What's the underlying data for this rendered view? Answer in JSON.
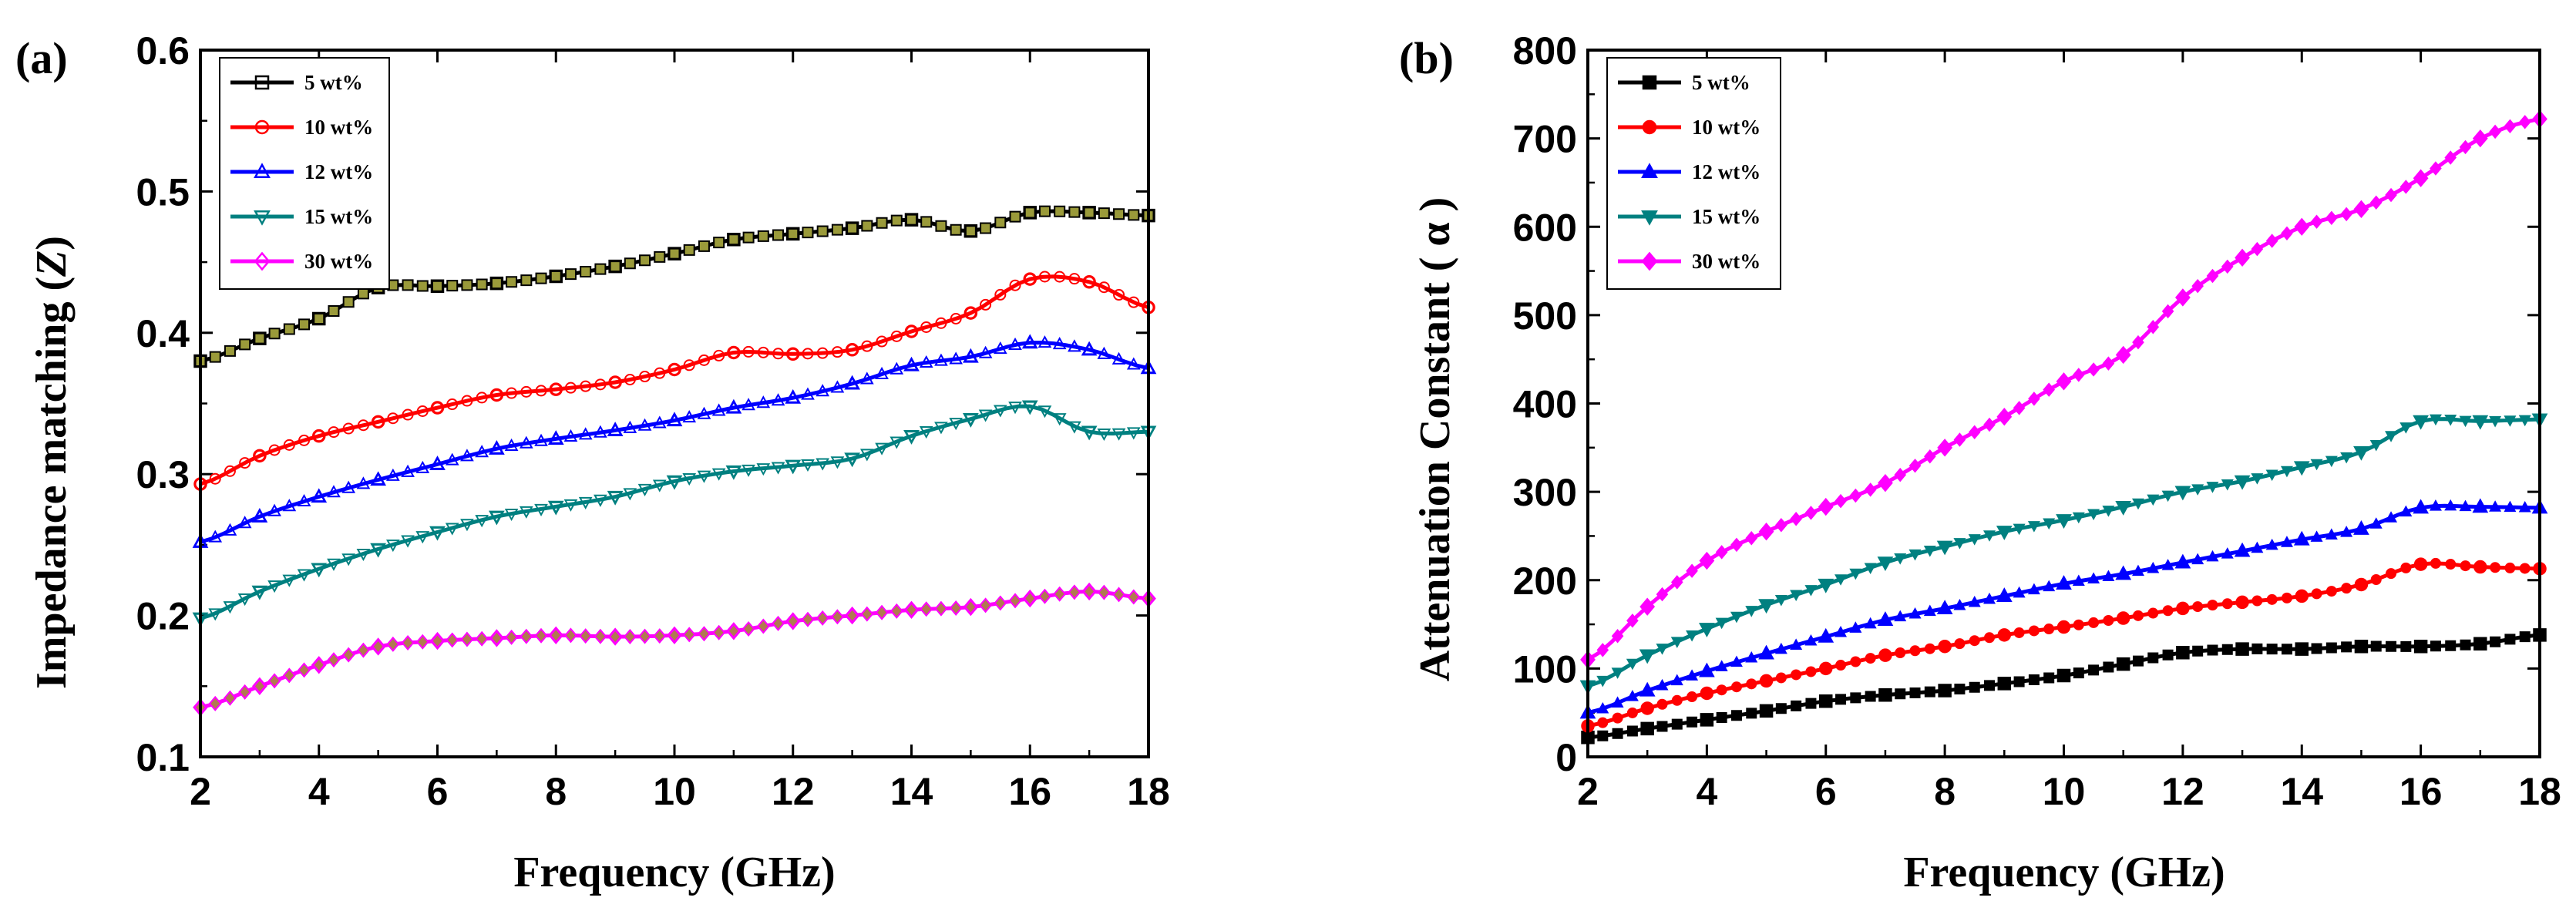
{
  "chart_data": [
    {
      "type": "line",
      "panel_label": "(a)",
      "title": "",
      "xlabel": "Frequency (GHz)",
      "ylabel_prefix": "Impedance matching (",
      "ylabel_symbol": "Z",
      "ylabel_suffix": ")",
      "xlim": [
        2,
        18
      ],
      "ylim": [
        0.1,
        0.6
      ],
      "xticks": [
        2,
        4,
        6,
        8,
        10,
        12,
        14,
        16,
        18
      ],
      "yticks": [
        0.1,
        0.2,
        0.3,
        0.4,
        0.5,
        0.6
      ],
      "legend_position": "top-left",
      "grid": false,
      "marker_style": "hollow",
      "x": [
        2,
        3,
        4,
        5,
        6,
        7,
        8,
        9,
        10,
        11,
        12,
        13,
        14,
        15,
        16,
        17,
        18
      ],
      "series": [
        {
          "name": "5 wt%",
          "color": "#000000",
          "marker": "square",
          "values": [
            0.38,
            0.396,
            0.41,
            0.432,
            0.433,
            0.435,
            0.44,
            0.447,
            0.456,
            0.466,
            0.47,
            0.474,
            0.48,
            0.472,
            0.485,
            0.485,
            0.483
          ]
        },
        {
          "name": "10 wt%",
          "color": "#ff0000",
          "marker": "circle",
          "values": [
            0.293,
            0.313,
            0.327,
            0.337,
            0.347,
            0.356,
            0.36,
            0.365,
            0.374,
            0.386,
            0.385,
            0.388,
            0.401,
            0.414,
            0.438,
            0.436,
            0.418
          ]
        },
        {
          "name": "12 wt%",
          "color": "#0000ff",
          "marker": "triangle-up",
          "values": [
            0.252,
            0.27,
            0.284,
            0.296,
            0.307,
            0.318,
            0.325,
            0.331,
            0.338,
            0.347,
            0.354,
            0.364,
            0.377,
            0.383,
            0.393,
            0.388,
            0.375
          ]
        },
        {
          "name": "15 wt%",
          "color": "#008080",
          "marker": "triangle-down",
          "values": [
            0.198,
            0.217,
            0.233,
            0.247,
            0.259,
            0.27,
            0.277,
            0.284,
            0.295,
            0.302,
            0.306,
            0.311,
            0.327,
            0.339,
            0.348,
            0.33,
            0.33
          ]
        },
        {
          "name": "30 wt%",
          "color": "#ff00ff",
          "marker": "diamond",
          "values": [
            0.135,
            0.15,
            0.165,
            0.178,
            0.182,
            0.184,
            0.186,
            0.185,
            0.186,
            0.189,
            0.196,
            0.2,
            0.204,
            0.206,
            0.212,
            0.217,
            0.212
          ]
        }
      ]
    },
    {
      "type": "line",
      "panel_label": "(b)",
      "title": "",
      "xlabel": "Frequency (GHz)",
      "ylabel": "Attenuation Constant ( α )",
      "xlim": [
        2,
        18
      ],
      "ylim": [
        0,
        800
      ],
      "xticks": [
        2,
        4,
        6,
        8,
        10,
        12,
        14,
        16,
        18
      ],
      "yticks": [
        0,
        100,
        200,
        300,
        400,
        500,
        600,
        700,
        800
      ],
      "legend_position": "top-left",
      "grid": false,
      "marker_style": "filled",
      "x": [
        2,
        3,
        4,
        5,
        6,
        7,
        8,
        9,
        10,
        11,
        12,
        13,
        14,
        15,
        16,
        17,
        18
      ],
      "series": [
        {
          "name": "5 wt%",
          "color": "#000000",
          "marker": "square",
          "values": [
            22,
            32,
            42,
            52,
            63,
            70,
            75,
            83,
            92,
            105,
            118,
            122,
            122,
            125,
            125,
            128,
            138
          ]
        },
        {
          "name": "10 wt%",
          "color": "#ff0000",
          "marker": "circle",
          "values": [
            35,
            55,
            72,
            86,
            100,
            115,
            125,
            138,
            147,
            157,
            168,
            175,
            182,
            195,
            218,
            215,
            213
          ]
        },
        {
          "name": "12 wt%",
          "color": "#0000ff",
          "marker": "triangle-up",
          "values": [
            50,
            75,
            97,
            117,
            136,
            155,
            168,
            182,
            196,
            207,
            220,
            233,
            246,
            258,
            282,
            283,
            282
          ]
        },
        {
          "name": "15 wt%",
          "color": "#008080",
          "marker": "triangle-down",
          "values": [
            80,
            115,
            145,
            172,
            195,
            220,
            238,
            255,
            268,
            283,
            300,
            312,
            328,
            345,
            380,
            380,
            382
          ]
        },
        {
          "name": "30 wt%",
          "color": "#ff00ff",
          "marker": "diamond",
          "values": [
            110,
            170,
            222,
            255,
            283,
            310,
            350,
            385,
            425,
            455,
            520,
            565,
            600,
            620,
            655,
            700,
            722
          ]
        }
      ]
    }
  ]
}
